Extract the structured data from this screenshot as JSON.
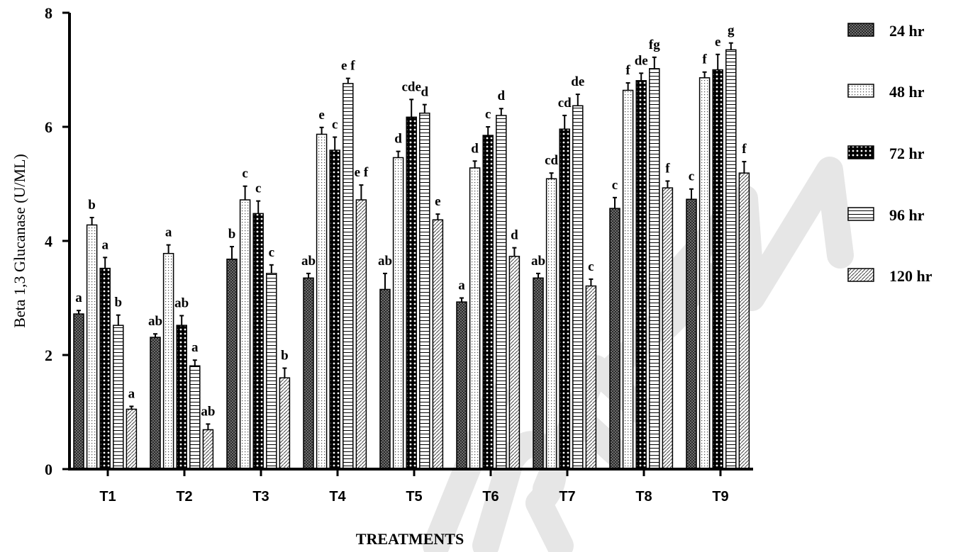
{
  "chart_data": {
    "type": "bar",
    "ylabel": "Beta 1,3 Glucanase (U/ML)",
    "xlabel": "TREATMENTS",
    "ylim": [
      0,
      8
    ],
    "yticks": [
      "0",
      "2",
      "4",
      "6",
      "8"
    ],
    "categories": [
      "T1",
      "T2",
      "T3",
      "T4",
      "T5",
      "T6",
      "T7",
      "T8",
      "T9"
    ],
    "legend_position": "right",
    "series": [
      {
        "name": "24 hr",
        "pattern": "crosshatch",
        "values": [
          2.72,
          2.31,
          3.68,
          3.35,
          3.15,
          2.93,
          3.35,
          4.57,
          4.73
        ],
        "errors": [
          0.06,
          0.06,
          0.22,
          0.08,
          0.28,
          0.07,
          0.08,
          0.19,
          0.18
        ],
        "labels": [
          "a",
          "ab",
          "b",
          "ab",
          "ab",
          "a",
          "ab",
          "c",
          "c"
        ]
      },
      {
        "name": "48 hr",
        "pattern": "dots",
        "values": [
          4.28,
          3.78,
          4.72,
          5.87,
          5.46,
          5.28,
          5.09,
          6.64,
          6.86
        ],
        "errors": [
          0.13,
          0.15,
          0.24,
          0.12,
          0.11,
          0.12,
          0.1,
          0.13,
          0.1
        ],
        "labels": [
          "b",
          "a",
          "c",
          "e",
          "d",
          "d",
          "cd",
          "f",
          "f"
        ]
      },
      {
        "name": "72 hr",
        "pattern": "checker",
        "values": [
          3.52,
          2.52,
          4.48,
          5.59,
          6.17,
          5.85,
          5.96,
          6.81,
          7.0
        ],
        "errors": [
          0.19,
          0.17,
          0.22,
          0.23,
          0.31,
          0.15,
          0.24,
          0.13,
          0.27
        ],
        "labels": [
          "a",
          "ab",
          "c",
          "c",
          "cde",
          "c",
          "cd",
          "de",
          "e"
        ]
      },
      {
        "name": "96 hr",
        "pattern": "horizontal",
        "values": [
          2.52,
          1.81,
          3.43,
          6.76,
          6.24,
          6.2,
          6.37,
          7.02,
          7.35
        ],
        "errors": [
          0.18,
          0.1,
          0.15,
          0.09,
          0.15,
          0.12,
          0.2,
          0.2,
          0.12
        ],
        "labels": [
          "b",
          "a",
          "c",
          "e f",
          "d",
          "d",
          "de",
          "fg",
          "g"
        ]
      },
      {
        "name": "120 hr",
        "pattern": "diagonal",
        "values": [
          1.05,
          0.69,
          1.6,
          4.72,
          4.37,
          3.73,
          3.21,
          4.93,
          5.19
        ],
        "errors": [
          0.05,
          0.1,
          0.17,
          0.26,
          0.1,
          0.15,
          0.12,
          0.12,
          0.2
        ],
        "labels": [
          "a",
          "ab",
          "b",
          "e f",
          "e",
          "d",
          "c",
          "f",
          "f"
        ]
      }
    ]
  }
}
